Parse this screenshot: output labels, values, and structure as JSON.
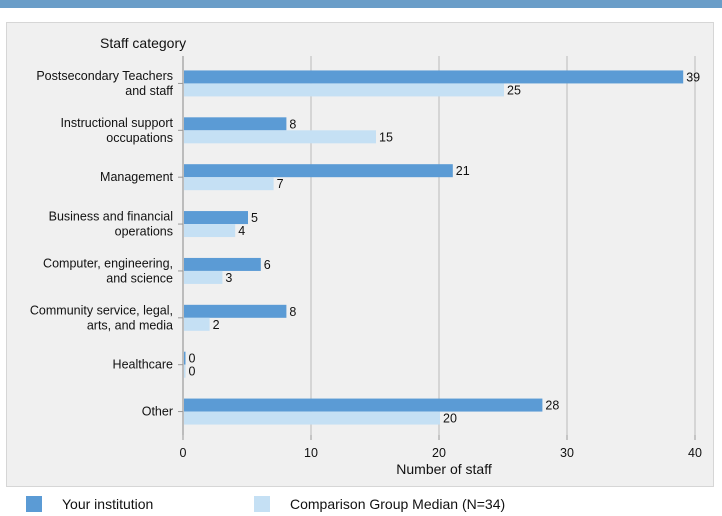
{
  "chart_data": {
    "type": "bar",
    "orientation": "horizontal",
    "ylabel": "Staff category",
    "xlabel": "Number of staff",
    "xlim": [
      0,
      40
    ],
    "xticks": [
      0,
      10,
      20,
      30,
      40
    ],
    "grid": true,
    "categories": [
      [
        "Postsecondary Teachers",
        "and staff"
      ],
      [
        "Instructional support",
        "occupations"
      ],
      [
        "Management"
      ],
      [
        "Business and financial",
        "operations"
      ],
      [
        "Computer, engineering,",
        "and science"
      ],
      [
        "Community service, legal,",
        "arts, and media"
      ],
      [
        "Healthcare"
      ],
      [
        "Other"
      ]
    ],
    "series": [
      {
        "name": "Your institution",
        "color": "#5b9bd5",
        "values": [
          39,
          8,
          21,
          5,
          6,
          8,
          0,
          28
        ]
      },
      {
        "name": "Comparison Group Median (N=34)",
        "color": "#c5e0f4",
        "values": [
          25,
          15,
          7,
          4,
          3,
          2,
          0,
          20
        ]
      }
    ],
    "legend_position": "bottom"
  },
  "colors": {
    "top_rule": "#6a9dc8",
    "panel_bg": "#f0f0f0",
    "grid": "#cccccc",
    "axis": "#999999"
  }
}
